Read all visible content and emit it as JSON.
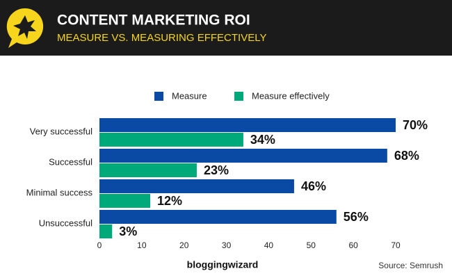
{
  "chart_data": {
    "type": "bar",
    "orientation": "horizontal",
    "title": "CONTENT MARKETING ROI",
    "subtitle": "MEASURE VS. MEASURING EFFECTIVELY",
    "categories": [
      "Very successful",
      "Successful",
      "Minimal success",
      "Unsuccessful"
    ],
    "series": [
      {
        "name": "Measure",
        "color": "#0a4aa5",
        "values": [
          70,
          68,
          46,
          56
        ],
        "value_labels": [
          "70%",
          "68%",
          "46%",
          "56%"
        ]
      },
      {
        "name": "Measure effectively",
        "color": "#00a97a",
        "values": [
          34,
          23,
          12,
          3
        ],
        "value_labels": [
          "34%",
          "23%",
          "12%",
          "3%"
        ]
      }
    ],
    "xlim": [
      0,
      70
    ],
    "xticks": [
      0,
      10,
      20,
      30,
      40,
      50,
      60,
      70
    ],
    "grid": false,
    "legend": "top",
    "brand": "bloggingwizard",
    "source": "Source: Semrush"
  }
}
